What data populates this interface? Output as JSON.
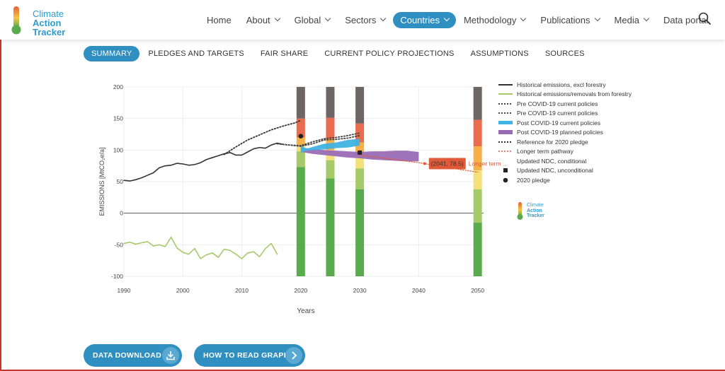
{
  "brand": {
    "line1": "Climate",
    "line2": "Action",
    "line3": "Tracker",
    "colors": {
      "climate": "#2e9bd0",
      "action": "#2e9bd0",
      "tracker": "#2e9bd0",
      "thermo_top": "#e2613a",
      "thermo_mid": "#f5c542",
      "thermo_bottom": "#5aab4e"
    }
  },
  "nav": {
    "items": [
      {
        "label": "Home",
        "has_menu": false
      },
      {
        "label": "About",
        "has_menu": true
      },
      {
        "label": "Global",
        "has_menu": true
      },
      {
        "label": "Sectors",
        "has_menu": true
      },
      {
        "label": "Countries",
        "has_menu": true,
        "active": true
      },
      {
        "label": "Methodology",
        "has_menu": true
      },
      {
        "label": "Publications",
        "has_menu": true
      },
      {
        "label": "Media",
        "has_menu": true
      },
      {
        "label": "Data portal",
        "has_menu": false
      }
    ],
    "search_icon": "search-icon"
  },
  "subnav": {
    "items": [
      "SUMMARY",
      "PLEDGES AND TARGETS",
      "FAIR SHARE",
      "CURRENT POLICY PROJECTIONS",
      "ASSUMPTIONS",
      "SOURCES"
    ],
    "active": "SUMMARY"
  },
  "chart_data": {
    "type": "line",
    "xlabel": "Years",
    "ylabel": "EMISSIONS [MtCO₂e/a]",
    "xlim": [
      1990,
      2051
    ],
    "ylim": [
      -100,
      200
    ],
    "xticks": [
      1990,
      2000,
      2010,
      2020,
      2030,
      2040,
      2050
    ],
    "yticks": [
      200,
      150,
      100,
      50,
      0,
      -50,
      -100
    ],
    "grid": true,
    "legend_position": "right",
    "series": [
      {
        "name": "Historical emissions, excl forestry",
        "style": "solid",
        "color": "#333333",
        "x": [
          1990,
          1991,
          1992,
          1993,
          1994,
          1995,
          1996,
          1997,
          1998,
          1999,
          2000,
          2001,
          2002,
          2003,
          2004,
          2005,
          2006,
          2007,
          2008,
          2009,
          2010,
          2011,
          2012,
          2013,
          2014,
          2015,
          2016,
          2017
        ],
        "y": [
          52,
          51,
          53,
          56,
          60,
          64,
          72,
          75,
          76,
          79,
          78,
          76,
          77,
          80,
          85,
          88,
          91,
          94,
          96,
          92,
          92,
          97,
          102,
          104,
          103,
          108,
          111,
          109
        ]
      },
      {
        "name": "Historical emissions/removals from forestry",
        "style": "solid",
        "color": "#a6c96a",
        "x": [
          1990,
          1991,
          1992,
          1993,
          1994,
          1995,
          1996,
          1997,
          1998,
          1999,
          2000,
          2001,
          2002,
          2003,
          2004,
          2005,
          2006,
          2007,
          2008,
          2009,
          2010,
          2011,
          2012,
          2013,
          2014,
          2015,
          2016
        ],
        "y": [
          -48,
          -46,
          -49,
          -47,
          -45,
          -52,
          -50,
          -53,
          -38,
          -55,
          -62,
          -65,
          -56,
          -72,
          -66,
          -63,
          -70,
          -57,
          -59,
          -65,
          -72,
          -63,
          -61,
          -69,
          -56,
          -48,
          -65
        ]
      },
      {
        "name": "Pre COVID-19 current policies",
        "style": "dotted",
        "color": "#444444",
        "x": [
          2016,
          2018,
          2020,
          2022,
          2024,
          2026,
          2028,
          2030
        ],
        "y": [
          110,
          108,
          106,
          110,
          116,
          117,
          119,
          123
        ]
      },
      {
        "name": "Pre COVID-19 current policies",
        "style": "dotted",
        "color": "#444444",
        "x": [
          2016,
          2018,
          2020,
          2022,
          2024,
          2026,
          2028,
          2030
        ],
        "y": [
          110,
          108,
          107,
          113,
          118,
          120,
          123,
          127
        ]
      },
      {
        "name": "Post COVID-19 current policies",
        "style": "band",
        "color": "#3fb3e3",
        "x": [
          2020,
          2021,
          2022,
          2024,
          2026,
          2028,
          2030
        ],
        "upper": [
          107,
          102,
          105,
          110,
          112,
          116,
          118
        ],
        "lower": [
          96,
          99,
          100,
          101,
          103,
          104,
          107
        ]
      },
      {
        "name": "Post COVID-19 planned policies",
        "style": "band",
        "color": "#9a6bb5",
        "x": [
          2020,
          2022,
          2024,
          2026,
          2028,
          2030,
          2032,
          2034,
          2036,
          2038,
          2040
        ],
        "upper": [
          104,
          102,
          100,
          99,
          98,
          97,
          98,
          98,
          99,
          99,
          97
        ],
        "lower": [
          97,
          94,
          92,
          90,
          88,
          87,
          85,
          84,
          83,
          82,
          82
        ]
      },
      {
        "name": "Reference for 2020 pledge",
        "style": "dotted",
        "color": "#333333",
        "x": [
          2007,
          2009,
          2011,
          2013,
          2015,
          2017,
          2019,
          2020
        ],
        "y": [
          93,
          105,
          116,
          124,
          132,
          138,
          143,
          147
        ]
      },
      {
        "name": "Longer term pathway",
        "style": "dotted",
        "color": "#e05a3a",
        "x": [
          2030,
          2035,
          2040,
          2041,
          2045,
          2050
        ],
        "y": [
          92,
          86,
          80,
          78.5,
          72,
          65
        ]
      },
      {
        "name": "Updated NDC, conditional",
        "style": "marker-none",
        "color": "#333333",
        "x": [],
        "y": []
      },
      {
        "name": "Updated NDC, unconditional",
        "style": "marker-square",
        "color": "#222222",
        "x": [
          2030
        ],
        "y": [
          96
        ]
      },
      {
        "name": "2020 pledge",
        "style": "marker-circle",
        "color": "#222222",
        "x": [
          2020
        ],
        "y": [
          122
        ]
      }
    ],
    "rating_bars": {
      "years": [
        2020,
        2025,
        2030,
        2050
      ],
      "bands": [
        {
          "color": "#5aab4e",
          "tops": [
            73,
            55,
            38,
            -15
          ]
        },
        {
          "color": "#a6c96a",
          "tops": [
            98,
            84,
            71,
            38
          ]
        },
        {
          "color": "#f5e07a",
          "tops": [
            108,
            100,
            95,
            68
          ]
        },
        {
          "color": "#f5b047",
          "tops": [
            120,
            118,
            112,
            106
          ]
        },
        {
          "color": "#ea6c4e",
          "tops": [
            150,
            151,
            142,
            148
          ]
        },
        {
          "color": "#6d6566",
          "tops": [
            200,
            200,
            200,
            200
          ]
        }
      ]
    },
    "tooltip": {
      "text": "(2041, 78.5)",
      "series_label": "Longer term ..."
    }
  },
  "side_logo": {
    "line1": "Climate",
    "line2": "Action",
    "line3": "Tracker"
  },
  "buttons": {
    "download": "DATA DOWNLOAD",
    "how_to": "HOW TO READ GRAPH"
  }
}
